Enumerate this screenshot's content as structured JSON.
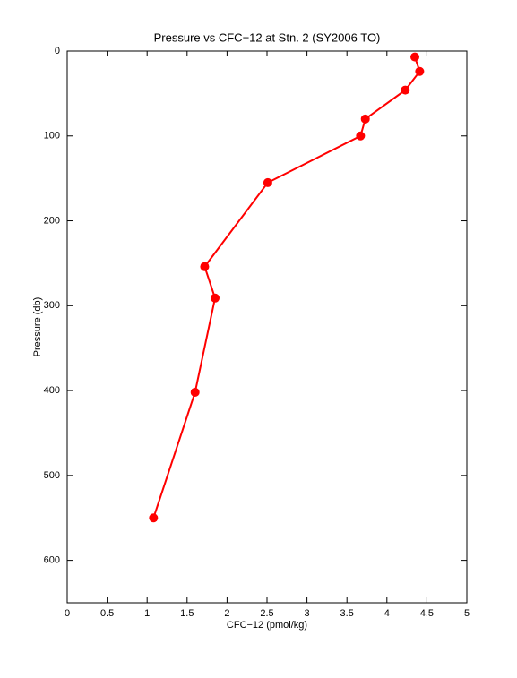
{
  "chart_data": {
    "type": "line",
    "title": "Pressure vs CFC−12 at Stn. 2 (SY2006 TO)",
    "x_label": "CFC−12 (pmol/kg)",
    "y_label": "Pressure (db)",
    "x": [
      4.35,
      4.41,
      4.23,
      3.73,
      3.67,
      2.51,
      1.72,
      1.85,
      1.6,
      1.08
    ],
    "values": [
      7,
      24,
      46,
      80,
      100,
      155,
      254,
      291,
      402,
      550
    ],
    "color": "#ff0000",
    "xlim": [
      0,
      5
    ],
    "xticks": [
      0,
      0.5,
      1,
      1.5,
      2,
      2.5,
      3,
      3.5,
      4,
      4.5,
      5
    ],
    "ylim": [
      0,
      650
    ],
    "yticks": [
      0,
      100,
      200,
      300,
      400,
      500,
      600
    ],
    "y_reversed": true,
    "markers": true
  }
}
